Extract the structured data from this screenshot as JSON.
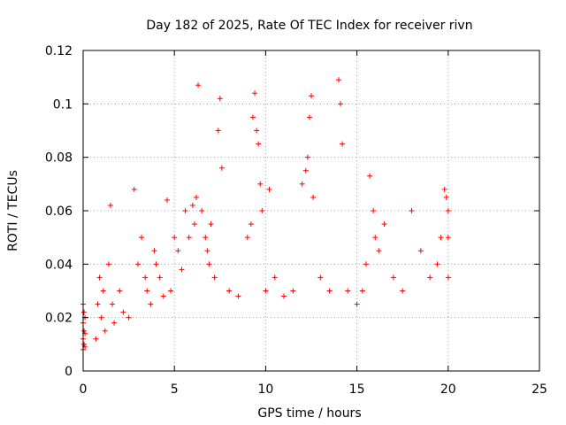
{
  "chart_data": {
    "type": "scatter",
    "title": "Day 182 of 2025, Rate Of TEC Index for receiver rivn",
    "xlabel": "GPS time / hours",
    "ylabel": "ROTI / TECUs",
    "xlim": [
      0,
      25
    ],
    "ylim": [
      0,
      0.12
    ],
    "xticks": [
      "0",
      "5",
      "10",
      "15",
      "20",
      "25"
    ],
    "yticks": [
      "0",
      "0.02",
      "0.04",
      "0.06",
      "0.08",
      "0.1",
      "0.12"
    ],
    "grid": true,
    "marker": "plus",
    "color": "#ff0000",
    "series": [
      {
        "x": [
          0.0,
          0.0,
          0.0,
          0.0,
          0.05,
          0.05,
          0.05,
          0.1,
          0.1,
          0.1,
          0.7,
          0.8,
          0.9,
          1.0,
          1.1,
          1.2,
          1.4,
          1.5,
          1.6,
          1.7,
          2.0,
          2.2,
          2.5,
          2.8,
          3.0,
          3.2,
          3.4,
          3.5,
          3.7,
          3.9,
          4.0,
          4.2,
          4.4,
          4.6,
          4.8,
          5.0,
          5.2,
          5.4,
          5.6,
          5.8,
          6.0,
          6.1,
          6.2,
          6.3,
          6.5,
          6.7,
          6.8,
          6.9,
          7.0,
          7.2,
          7.4,
          7.5,
          7.6,
          8.0,
          8.5,
          9.0,
          9.2,
          9.3,
          9.4,
          9.5,
          9.6,
          9.7,
          9.8,
          10.0,
          10.2,
          10.5,
          11.0,
          11.5,
          12.0,
          12.2,
          12.3,
          12.4,
          12.5,
          12.6,
          13.0,
          13.5,
          14.0,
          14.1,
          14.2,
          14.5,
          15.0,
          15.3,
          15.5,
          15.7,
          15.9,
          16.0,
          16.2,
          16.5,
          17.0,
          17.5,
          18.0,
          18.5,
          19.0,
          19.4,
          19.6,
          19.8,
          19.9,
          20.0,
          20.0,
          20.0
        ],
        "y": [
          0.008,
          0.012,
          0.018,
          0.025,
          0.01,
          0.015,
          0.022,
          0.009,
          0.014,
          0.02,
          0.012,
          0.025,
          0.035,
          0.02,
          0.03,
          0.015,
          0.04,
          0.062,
          0.025,
          0.018,
          0.03,
          0.022,
          0.02,
          0.068,
          0.04,
          0.05,
          0.035,
          0.03,
          0.025,
          0.045,
          0.04,
          0.035,
          0.028,
          0.064,
          0.03,
          0.05,
          0.045,
          0.038,
          0.06,
          0.05,
          0.062,
          0.055,
          0.065,
          0.107,
          0.06,
          0.05,
          0.045,
          0.04,
          0.055,
          0.035,
          0.09,
          0.102,
          0.076,
          0.03,
          0.028,
          0.05,
          0.055,
          0.095,
          0.104,
          0.09,
          0.085,
          0.07,
          0.06,
          0.03,
          0.068,
          0.035,
          0.028,
          0.03,
          0.07,
          0.075,
          0.08,
          0.095,
          0.103,
          0.065,
          0.035,
          0.03,
          0.109,
          0.1,
          0.085,
          0.03,
          0.025,
          0.03,
          0.04,
          0.073,
          0.06,
          0.05,
          0.045,
          0.055,
          0.035,
          0.03,
          0.06,
          0.045,
          0.035,
          0.04,
          0.05,
          0.068,
          0.065,
          0.06,
          0.05,
          0.035
        ]
      }
    ]
  }
}
